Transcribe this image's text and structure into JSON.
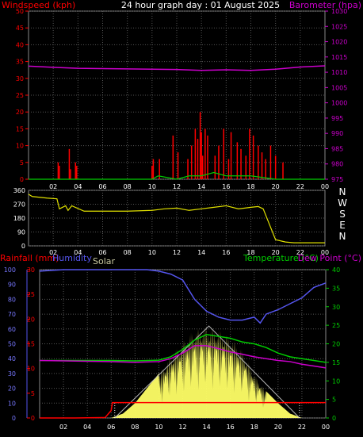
{
  "header": {
    "windspeed_label": "Windspeed (kph)",
    "title": "24 hour graph day : 01 August 2025",
    "barometer_label": "Barometer (hpa)"
  },
  "wind_chart": {
    "y_ticks_left": [
      "0",
      "5",
      "10",
      "15",
      "20",
      "25",
      "30",
      "35",
      "40",
      "45",
      "50"
    ],
    "y_ticks_right": [
      "975",
      "980",
      "985",
      "990",
      "995",
      "1000",
      "1005",
      "1010",
      "1015",
      "1020",
      "1025",
      "1030"
    ],
    "x_ticks": [
      "02",
      "04",
      "06",
      "08",
      "10",
      "12",
      "14",
      "16",
      "18",
      "20",
      "22",
      "00"
    ]
  },
  "direction_chart": {
    "y_ticks": [
      "0",
      "90",
      "180",
      "270",
      "360"
    ],
    "compass": [
      "N",
      "W",
      "S",
      "E",
      "N"
    ],
    "x_ticks": [
      "02",
      "04",
      "06",
      "08",
      "10",
      "12",
      "14",
      "16",
      "18",
      "20",
      "22",
      "00"
    ]
  },
  "bottom_chart": {
    "rain_label": "Rainfall (mm)",
    "humidity_label": "Humidity",
    "solar_label": "Solar",
    "temperature_label": "Temperature (°C)",
    "dewpoint_label": "Dew Point (°C)",
    "humidity_ticks": [
      "0",
      "10",
      "20",
      "30",
      "40",
      "50",
      "60",
      "70",
      "80",
      "90",
      "100"
    ],
    "rain_ticks": [
      "0",
      "5",
      "10",
      "15",
      "20",
      "25",
      "30"
    ],
    "temp_ticks": [
      "0",
      "5",
      "10",
      "15",
      "20",
      "25",
      "30",
      "35",
      "40"
    ],
    "x_ticks": [
      "02",
      "04",
      "06",
      "08",
      "10",
      "12",
      "14",
      "16",
      "18",
      "20",
      "22",
      "00"
    ]
  },
  "chart_data": [
    {
      "type": "line",
      "title": "24 hour graph day : 01 August 2025",
      "xlabel": "",
      "ylabel": "Windspeed (kph)",
      "ylabel_right": "Barometer (hpa)",
      "ylim": [
        0,
        50
      ],
      "ylim_right": [
        975,
        1030
      ],
      "x_ticks": [
        "02",
        "04",
        "06",
        "08",
        "10",
        "12",
        "14",
        "16",
        "18",
        "20",
        "22",
        "00"
      ],
      "grid": true,
      "colors": {
        "wind": "#ff0000",
        "avg_wind": "#00cc00",
        "barometer": "#cc00cc"
      },
      "series": [
        {
          "name": "Barometer (hpa)",
          "x": [
            0,
            2,
            4,
            6,
            8,
            10,
            12,
            14,
            16,
            18,
            20,
            22,
            24
          ],
          "values": [
            1012,
            1011.6,
            1011.3,
            1011.2,
            1011.1,
            1011,
            1010.9,
            1010.6,
            1010.8,
            1010.6,
            1011,
            1011.7,
            1012.1
          ]
        },
        {
          "name": "Windspeed (kph)",
          "x": [
            2.4,
            2.5,
            3.3,
            3.4,
            3.8,
            3.9,
            10.0,
            10.1,
            10.6,
            11.7,
            12.1,
            12.9,
            13.2,
            13.5,
            13.7,
            13.9,
            14.0,
            14.1,
            14.3,
            14.5,
            15.1,
            15.4,
            15.8,
            16.2,
            16.4,
            16.9,
            17.2,
            17.6,
            17.9,
            18.2,
            18.6,
            18.9,
            19.2,
            19.6,
            20.0,
            20.6
          ],
          "values": [
            5,
            4,
            9,
            3,
            5,
            4,
            4,
            6,
            6,
            13,
            8,
            6,
            10,
            15,
            12,
            20,
            14,
            7,
            15,
            13,
            7,
            10,
            15,
            6,
            14,
            11,
            9,
            7,
            15,
            13,
            10,
            8,
            6,
            10,
            7,
            5
          ]
        },
        {
          "name": "Avg wind",
          "x": [
            0,
            10,
            10.5,
            12,
            13,
            14,
            15,
            16,
            18,
            20,
            24
          ],
          "values": [
            0,
            0,
            1,
            0,
            1,
            1,
            2,
            1,
            1,
            0,
            0
          ]
        }
      ]
    },
    {
      "type": "line",
      "title": "",
      "ylabel": "",
      "ylim": [
        0,
        360
      ],
      "y_ticks": [
        0,
        90,
        180,
        270,
        360
      ],
      "x_ticks": [
        "02",
        "04",
        "06",
        "08",
        "10",
        "12",
        "14",
        "16",
        "18",
        "20",
        "22",
        "00"
      ],
      "colors": {
        "direction": "#e0e000"
      },
      "series": [
        {
          "name": "Wind direction",
          "x": [
            0,
            0.3,
            1.5,
            2.3,
            2.5,
            3.0,
            3.2,
            3.5,
            4.5,
            6.0,
            8.0,
            10.0,
            10.5,
            11.0,
            12.0,
            13.0,
            14.0,
            15.0,
            16.0,
            17.0,
            18.0,
            18.6,
            19.0,
            20.0,
            20.8,
            21.5,
            22.5,
            23.0,
            24.0
          ],
          "values": [
            335,
            320,
            310,
            305,
            240,
            260,
            230,
            260,
            225,
            225,
            225,
            230,
            235,
            240,
            245,
            230,
            240,
            250,
            260,
            240,
            250,
            255,
            240,
            40,
            25,
            20,
            20,
            20,
            20
          ]
        }
      ]
    },
    {
      "type": "line",
      "title": "",
      "ylabel": "Humidity",
      "ylim": [
        0,
        100
      ],
      "ylim_rain": [
        0,
        30
      ],
      "ylim_right": [
        0,
        40
      ],
      "x_ticks": [
        "02",
        "04",
        "06",
        "08",
        "10",
        "12",
        "14",
        "16",
        "18",
        "20",
        "22",
        "00"
      ],
      "grid": true,
      "colors": {
        "humidity": "#5555ee",
        "temperature": "#00cc00",
        "dewpoint": "#cc00cc",
        "rain": "#ff0000",
        "solar": "#ffff66"
      },
      "series": [
        {
          "name": "Humidity",
          "x": [
            0,
            2,
            4,
            6,
            8,
            9,
            10,
            11,
            12,
            13,
            14,
            15,
            16,
            17,
            18,
            18.5,
            19,
            20,
            21,
            22,
            23,
            24
          ],
          "values": [
            99,
            100,
            100,
            100,
            100,
            100,
            99,
            97,
            93,
            80,
            72,
            68,
            66,
            66,
            68,
            64,
            70,
            73,
            77,
            81,
            88,
            91
          ]
        },
        {
          "name": "Temperature (°C)",
          "x": [
            0,
            2,
            4,
            6,
            8,
            10,
            11,
            12,
            13,
            14,
            15,
            16,
            17,
            18,
            19,
            20,
            21,
            22,
            23,
            24
          ],
          "values": [
            15.5,
            15.5,
            15.5,
            15.5,
            15.4,
            15.6,
            16.5,
            18.5,
            21,
            22.5,
            22,
            21.5,
            20.5,
            20,
            19,
            17.5,
            16.5,
            16,
            15.5,
            15
          ]
        },
        {
          "name": "Dew Point (°C)",
          "x": [
            0,
            2,
            4,
            6,
            8,
            10,
            11,
            12,
            13,
            14,
            15,
            16,
            17,
            18,
            19,
            20,
            21,
            22,
            23,
            24
          ],
          "values": [
            15.5,
            15.4,
            15.3,
            15.2,
            15,
            15.2,
            16,
            17.5,
            19.5,
            19.5,
            18.7,
            17.8,
            17.2,
            16.5,
            16,
            15.5,
            15.2,
            14.5,
            14,
            13.5
          ]
        },
        {
          "name": "Rainfall (mm)",
          "x": [
            0,
            3,
            5.5,
            6.0,
            6.1,
            24
          ],
          "values": [
            0,
            0,
            0.1,
            1.5,
            3.1,
            3.1
          ]
        },
        {
          "name": "Solar",
          "x": [
            6,
            7,
            8,
            9,
            10,
            11,
            12,
            13,
            14,
            15,
            16,
            17,
            18,
            19,
            20,
            21,
            22
          ],
          "values": [
            0,
            3,
            10,
            20,
            30,
            42,
            52,
            60,
            62,
            60,
            55,
            46,
            30,
            18,
            10,
            3,
            0
          ]
        }
      ]
    }
  ]
}
